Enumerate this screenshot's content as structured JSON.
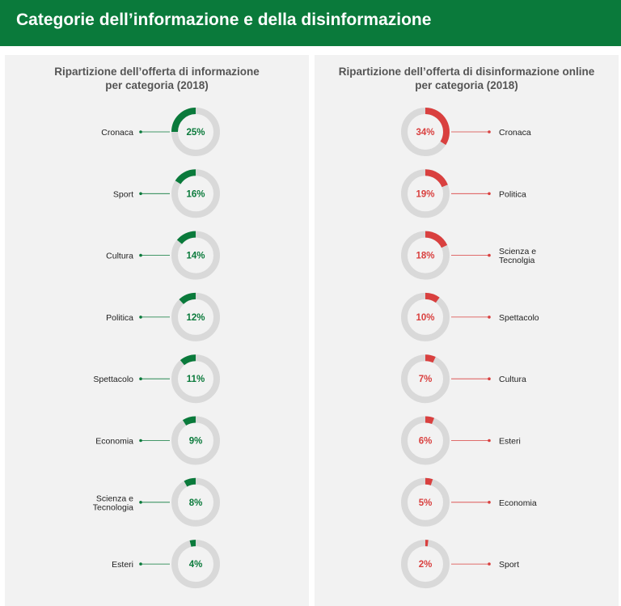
{
  "header": {
    "title": "Categorie dell’informazione e della disinformazione"
  },
  "colors": {
    "header": "#0a7a3b",
    "info": "#0a7a3b",
    "disinfo": "#d9403f",
    "ring": "#d9d9d9"
  },
  "chart_data": [
    {
      "type": "donut",
      "title_lines": [
        "Ripartizione dell’offerta di informazione",
        "per categoria (2018)"
      ],
      "items": [
        {
          "label": [
            "Cronaca"
          ],
          "value": 25,
          "display": "25%"
        },
        {
          "label": [
            "Sport"
          ],
          "value": 16,
          "display": "16%"
        },
        {
          "label": [
            "Cultura"
          ],
          "value": 14,
          "display": "14%"
        },
        {
          "label": [
            "Politica"
          ],
          "value": 12,
          "display": "12%"
        },
        {
          "label": [
            "Spettacolo"
          ],
          "value": 11,
          "display": "11%"
        },
        {
          "label": [
            "Economia"
          ],
          "value": 9,
          "display": "9%"
        },
        {
          "label": [
            "Scienza e",
            "Tecnologia"
          ],
          "value": 8,
          "display": "8%"
        },
        {
          "label": [
            "Esteri"
          ],
          "value": 4,
          "display": "4%"
        }
      ]
    },
    {
      "type": "donut",
      "title_lines": [
        "Ripartizione dell’offerta di disinformazione online",
        "per categoria  (2018)"
      ],
      "items": [
        {
          "label": [
            "Cronaca"
          ],
          "value": 34,
          "display": "34%"
        },
        {
          "label": [
            "Politica"
          ],
          "value": 19,
          "display": "19%"
        },
        {
          "label": [
            "Scienza e",
            "Tecnolgia"
          ],
          "value": 18,
          "display": "18%"
        },
        {
          "label": [
            "Spettacolo"
          ],
          "value": 10,
          "display": "10%"
        },
        {
          "label": [
            "Cultura"
          ],
          "value": 7,
          "display": "7%"
        },
        {
          "label": [
            "Esteri"
          ],
          "value": 6,
          "display": "6%"
        },
        {
          "label": [
            "Economia"
          ],
          "value": 5,
          "display": "5%"
        },
        {
          "label": [
            "Sport"
          ],
          "value": 2,
          "display": "2%"
        }
      ]
    }
  ]
}
